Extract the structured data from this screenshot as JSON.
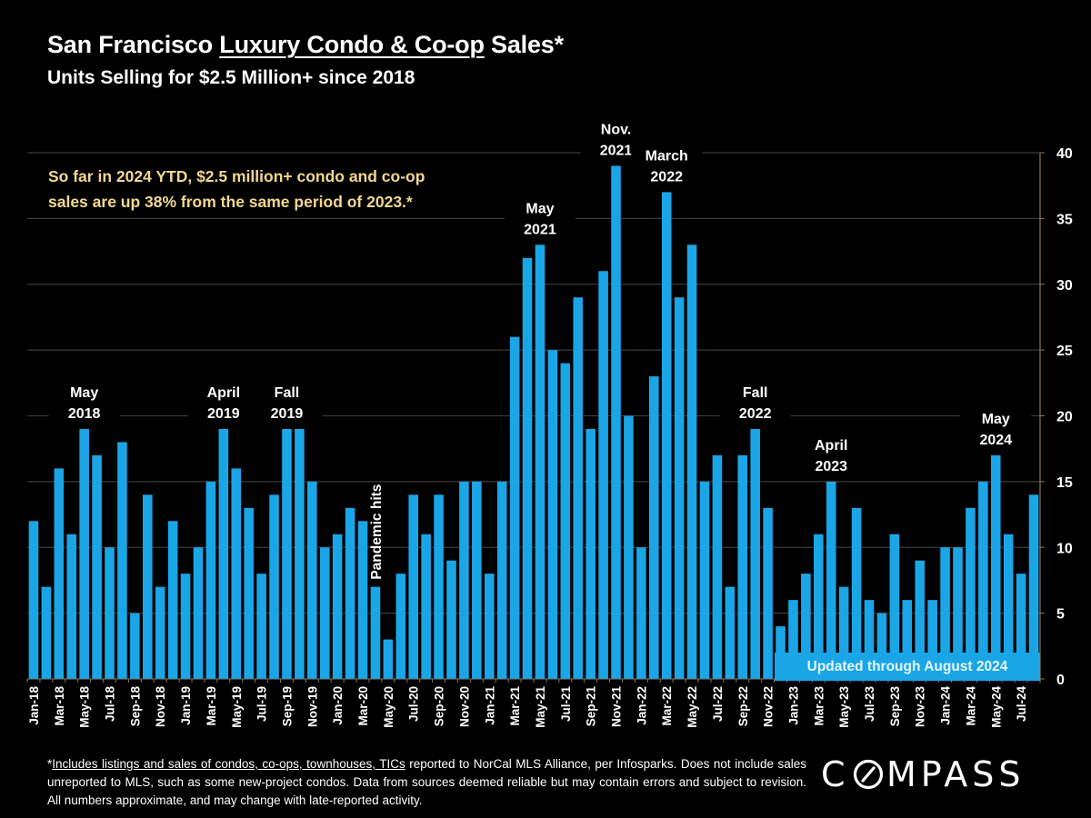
{
  "header": {
    "title_prefix": "San Francisco ",
    "title_underlined": "Luxury Condo & Co-op",
    "title_suffix": " Sales*",
    "subtitle": "Units Selling for $2.5 Million+ since 2018"
  },
  "callout": {
    "line1": "So far in 2024 YTD, $2.5 million+ condo and co-op",
    "line2": "sales are up 38% from the same period of 2023.*"
  },
  "updated_badge": "Updated through August 2024",
  "footnote": {
    "underlined": "Includes listings and sales of condos, co-ops, townhouses, TICs",
    "prefix": "*",
    "rest": " reported to NorCal MLS Alliance, per Infosparks. Does not include sales unreported to MLS, such as some new-project condos. Data from sources deemed reliable but may contain errors and subject to revision.  All numbers approximate, and may change with late-reported activity."
  },
  "logo": "COMPASS",
  "colors": {
    "bar": "#1aa6e6",
    "background": "#000000",
    "callout_text": "#f2d88f",
    "gridline": "#3a3a3a",
    "axis_line": "#8a7a55"
  },
  "chart_data": {
    "type": "bar",
    "title": "San Francisco Luxury Condo & Co-op Sales*",
    "subtitle": "Units Selling for $2.5 Million+ since 2018",
    "xlabel": "",
    "ylabel": "",
    "ylim": [
      0,
      40
    ],
    "y_ticks": [
      0,
      5,
      10,
      15,
      20,
      25,
      30,
      35,
      40
    ],
    "y_axis_side": "right",
    "grid": true,
    "categories": [
      "Jan-18",
      "Feb-18",
      "Mar-18",
      "Apr-18",
      "May-18",
      "Jun-18",
      "Jul-18",
      "Aug-18",
      "Sep-18",
      "Oct-18",
      "Nov-18",
      "Dec-18",
      "Jan-19",
      "Feb-19",
      "Mar-19",
      "Apr-19",
      "May-19",
      "Jun-19",
      "Jul-19",
      "Aug-19",
      "Sep-19",
      "Oct-19",
      "Nov-19",
      "Dec-19",
      "Jan-20",
      "Feb-20",
      "Mar-20",
      "Apr-20",
      "May-20",
      "Jun-20",
      "Jul-20",
      "Aug-20",
      "Sep-20",
      "Oct-20",
      "Nov-20",
      "Dec-20",
      "Jan-21",
      "Feb-21",
      "Mar-21",
      "Apr-21",
      "May-21",
      "Jun-21",
      "Jul-21",
      "Aug-21",
      "Sep-21",
      "Oct-21",
      "Nov-21",
      "Dec-21",
      "Jan-22",
      "Feb-22",
      "Mar-22",
      "Apr-22",
      "May-22",
      "Jun-22",
      "Jul-22",
      "Aug-22",
      "Sep-22",
      "Oct-22",
      "Nov-22",
      "Dec-22",
      "Jan-23",
      "Feb-23",
      "Mar-23",
      "Apr-23",
      "May-23",
      "Jun-23",
      "Jul-23",
      "Aug-23",
      "Sep-23",
      "Oct-23",
      "Nov-23",
      "Dec-23",
      "Jan-24",
      "Feb-24",
      "Mar-24",
      "Apr-24",
      "May-24",
      "Jun-24",
      "Jul-24",
      "Aug-24"
    ],
    "tick_labels_every": 2,
    "values": [
      12,
      7,
      16,
      11,
      19,
      17,
      10,
      18,
      5,
      14,
      7,
      12,
      8,
      10,
      15,
      19,
      16,
      13,
      8,
      14,
      19,
      19,
      15,
      10,
      11,
      13,
      12,
      7,
      3,
      8,
      14,
      11,
      14,
      9,
      15,
      15,
      8,
      15,
      26,
      32,
      33,
      25,
      24,
      29,
      19,
      31,
      39,
      20,
      10,
      23,
      37,
      29,
      33,
      15,
      17,
      7,
      17,
      19,
      13,
      4,
      6,
      8,
      11,
      15,
      7,
      13,
      6,
      5,
      11,
      6,
      9,
      6,
      10,
      10,
      13,
      15,
      17,
      11,
      8,
      14
    ],
    "annotations": [
      {
        "lines": [
          "May",
          "2018"
        ],
        "category": "May-18"
      },
      {
        "lines": [
          "April",
          "2019"
        ],
        "category": "Apr-19"
      },
      {
        "lines": [
          "Fall",
          "2019"
        ],
        "category": "Sep-19"
      },
      {
        "lines": [
          "Pandemic hits"
        ],
        "category": "Apr-20",
        "rotated": true
      },
      {
        "lines": [
          "May",
          "2021"
        ],
        "category": "May-21"
      },
      {
        "lines": [
          "Nov.",
          "2021"
        ],
        "category": "Nov-21"
      },
      {
        "lines": [
          "March",
          "2022"
        ],
        "category": "Mar-22"
      },
      {
        "lines": [
          "Fall",
          "2022"
        ],
        "category": "Oct-22"
      },
      {
        "lines": [
          "April",
          "2023"
        ],
        "category": "Apr-23"
      },
      {
        "lines": [
          "May",
          "2024"
        ],
        "category": "May-24"
      }
    ]
  }
}
